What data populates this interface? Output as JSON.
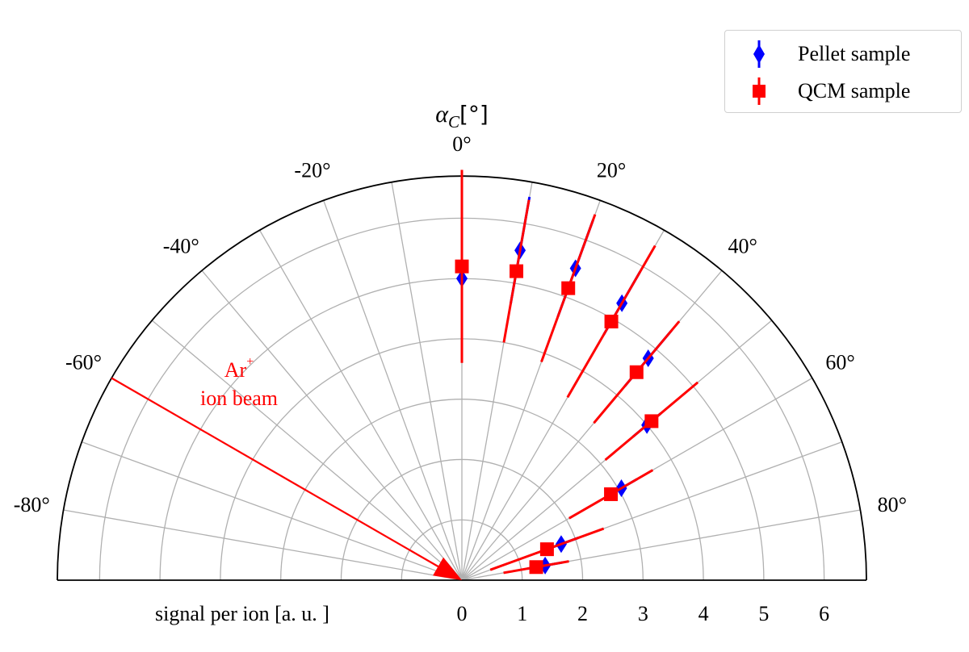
{
  "chart_data": {
    "type": "polar-scatter",
    "title": "αC[°]",
    "title_main": "α",
    "title_sub": "C",
    "title_unit": "[°]",
    "theta_range": [
      -90,
      90
    ],
    "theta_ticks": [
      -80,
      -60,
      -40,
      -20,
      0,
      20,
      40,
      60,
      80
    ],
    "theta_tick_labels": [
      "-80°",
      "-60°",
      "-40°",
      "-20°",
      "0°",
      "20°",
      "40°",
      "60°",
      "80°"
    ],
    "theta_grid_step": 10,
    "r_range": [
      0,
      6.7
    ],
    "r_ticks": [
      0,
      1,
      2,
      3,
      4,
      5,
      6
    ],
    "r_tick_labels": [
      "0",
      "1",
      "2",
      "3",
      "4",
      "5",
      "6"
    ],
    "r_grid_step": 1,
    "rlabel": "signal per ion [a. u. ]",
    "grid": true,
    "legend_position": "top-right",
    "series": [
      {
        "name": "Pellet sample",
        "color": "#0000ff",
        "marker": "diamond",
        "points": [
          {
            "theta": 0,
            "r": 5.0,
            "err": 1.3
          },
          {
            "theta": 10,
            "r": 5.55,
            "err": 0.9
          },
          {
            "theta": 20,
            "r": 5.5,
            "err": 0.85
          },
          {
            "theta": 30,
            "r": 5.3,
            "err": 0.6
          },
          {
            "theta": 40,
            "r": 4.8,
            "err": 0.6
          },
          {
            "theta": 50,
            "r": 4.0,
            "err": 0.3
          },
          {
            "theta": 60,
            "r": 3.05,
            "err": 0.3
          },
          {
            "theta": 70,
            "r": 1.75,
            "err": 0.3
          },
          {
            "theta": 80,
            "r": 1.4,
            "err": 0.3
          }
        ]
      },
      {
        "name": "QCM sample",
        "color": "#ff0000",
        "marker": "square",
        "points": [
          {
            "theta": 0,
            "r": 5.2,
            "err": 1.6
          },
          {
            "theta": 10,
            "r": 5.2,
            "err": 1.2
          },
          {
            "theta": 20,
            "r": 5.15,
            "err": 1.3
          },
          {
            "theta": 30,
            "r": 4.95,
            "err": 1.45
          },
          {
            "theta": 40,
            "r": 4.5,
            "err": 1.1
          },
          {
            "theta": 50,
            "r": 4.1,
            "err": 1.0
          },
          {
            "theta": 60,
            "r": 2.85,
            "err": 0.8
          },
          {
            "theta": 70,
            "r": 1.5,
            "err": 1.0
          },
          {
            "theta": 80,
            "r": 1.25,
            "err": 0.55
          }
        ]
      }
    ],
    "annotation": {
      "lines": [
        "Ar",
        "ion beam"
      ],
      "superscript": "+",
      "color": "#ff0000",
      "arrow_theta": -60,
      "arrow_r_start": 6.7,
      "arrow_r_end": 0
    }
  }
}
